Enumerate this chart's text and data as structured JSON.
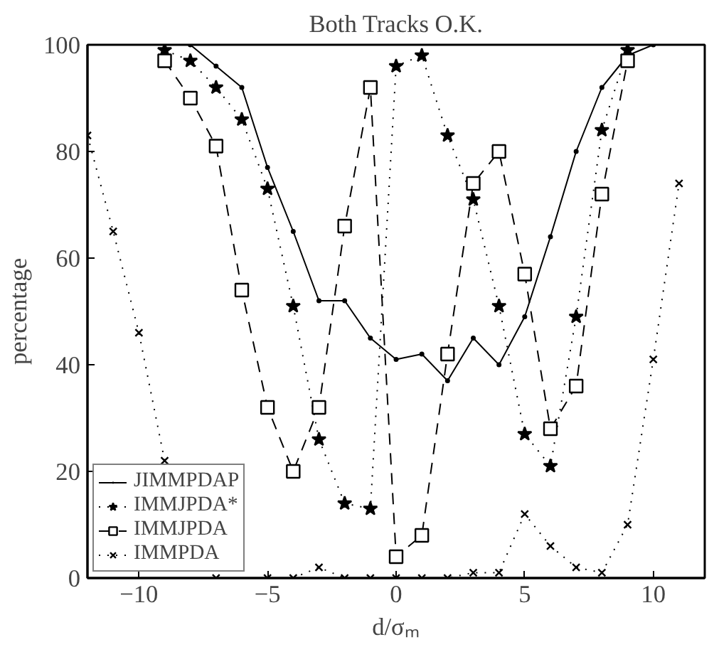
{
  "chart_data": {
    "type": "line",
    "title": "Both Tracks O.K.",
    "xlabel": "d/σₘ",
    "ylabel": "percentage",
    "xlim": [
      -12,
      12
    ],
    "ylim": [
      0,
      100
    ],
    "xticks": [
      -10,
      -5,
      0,
      5,
      10
    ],
    "yticks": [
      0,
      20,
      40,
      60,
      80,
      100
    ],
    "grid": false,
    "legend": "bottom left",
    "series": [
      {
        "name": "JIMMPDAP",
        "color": "#000000",
        "marker": "circle",
        "line_style": "solid",
        "x": [
          -8,
          -7,
          -6,
          -5,
          -4,
          -3,
          -2,
          -1,
          0,
          1,
          2,
          3,
          4,
          5,
          6,
          7,
          8,
          9,
          10
        ],
        "values": [
          100,
          96,
          92,
          77,
          65,
          52,
          52,
          45,
          41,
          42,
          37,
          45,
          40,
          49,
          64,
          80,
          92,
          98,
          100
        ]
      },
      {
        "name": "IMMJPDA*",
        "color": "#000000",
        "marker": "star",
        "line_style": "dotted",
        "x": [
          -9,
          -8,
          -7,
          -6,
          -5,
          -4,
          -3,
          -2,
          -1,
          0,
          1,
          2,
          3,
          4,
          5,
          6,
          7,
          8,
          9
        ],
        "values": [
          99,
          97,
          92,
          86,
          73,
          51,
          26,
          14,
          13,
          96,
          98,
          83,
          71,
          51,
          27,
          21,
          49,
          84,
          99
        ]
      },
      {
        "name": "IMMJPDA",
        "color": "#000000",
        "marker": "square",
        "line_style": "dashed",
        "x": [
          -9,
          -8,
          -7,
          -6,
          -5,
          -4,
          -3,
          -2,
          -1,
          0,
          1,
          2,
          3,
          4,
          5,
          6,
          7,
          8,
          9
        ],
        "values": [
          97,
          90,
          81,
          54,
          32,
          20,
          32,
          66,
          92,
          4,
          8,
          42,
          74,
          80,
          57,
          28,
          36,
          72,
          97
        ]
      },
      {
        "name": "IMMPDA",
        "color": "#000000",
        "marker": "cross",
        "line_style": "dotted",
        "x": [
          -12,
          -11,
          -10,
          -9,
          -8,
          -7,
          -6,
          -5,
          -4,
          -3,
          -2,
          -1,
          0,
          1,
          2,
          3,
          4,
          5,
          6,
          7,
          8,
          9,
          10,
          11
        ],
        "values": [
          83,
          65,
          46,
          22,
          null,
          0,
          null,
          0,
          0,
          2,
          0,
          0,
          0,
          0,
          0,
          1,
          1,
          12,
          6,
          2,
          1,
          10,
          41,
          74
        ]
      }
    ]
  }
}
